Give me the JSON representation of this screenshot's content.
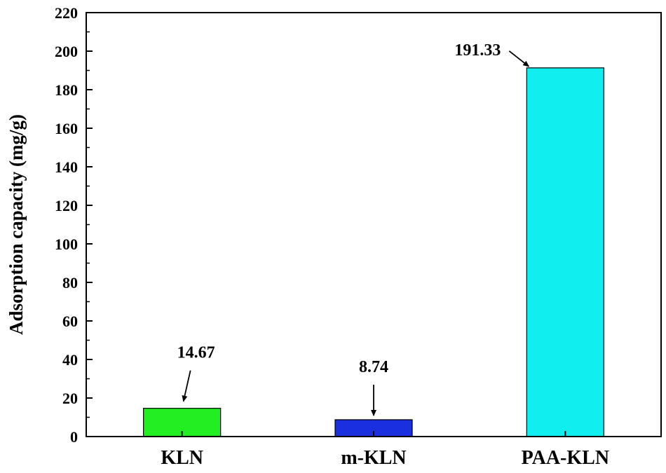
{
  "chart_data": {
    "type": "bar",
    "categories": [
      "KLN",
      "m-KLN",
      "PAA-KLN"
    ],
    "values": [
      14.67,
      8.74,
      191.33
    ],
    "data_labels": [
      "14.67",
      "8.74",
      "191.33"
    ],
    "colors": [
      "#22ee22",
      "#1a2fe0",
      "#11eef0"
    ],
    "title": "",
    "xlabel": "",
    "ylabel": "Adsorption capacity (mg/g)",
    "ylim": [
      0,
      220
    ],
    "yticks": [
      0,
      20,
      40,
      60,
      80,
      100,
      120,
      140,
      160,
      180,
      200,
      220
    ],
    "grid": false,
    "legend": "none"
  }
}
